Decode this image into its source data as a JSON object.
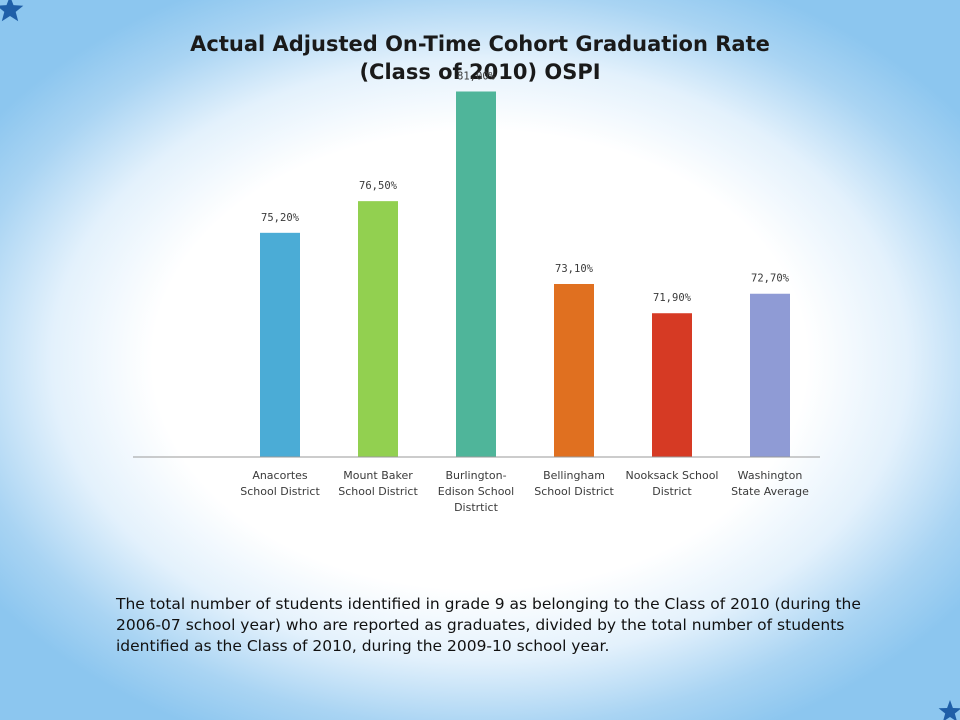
{
  "chart_data": {
    "type": "bar",
    "title_line1": "Actual Adjusted On-Time Cohort Graduation Rate",
    "title_line2": "(Class of 2010)  OSPI",
    "categories": [
      [
        "Anacortes",
        "School District"
      ],
      [
        "Mount Baker",
        "School District"
      ],
      [
        "Burlington-",
        "Edison School",
        "Distrtict"
      ],
      [
        "Bellingham",
        "School District"
      ],
      [
        "Nooksack School",
        "District"
      ],
      [
        "Washington",
        "State Average"
      ]
    ],
    "values": [
      75.2,
      76.5,
      81.0,
      73.1,
      71.9,
      72.7
    ],
    "value_labels": [
      "75,20%",
      "76,50%",
      "81,00%",
      "73,10%",
      "71,90%",
      "72,70%"
    ],
    "colors": [
      "#4bacd6",
      "#92d050",
      "#4fb59a",
      "#e07020",
      "#d63a24",
      "#8f9bd5"
    ],
    "ylim": [
      66,
      81.8
    ],
    "grid": false,
    "legend": "none"
  },
  "caption": "The total number of students identified in grade 9 as belonging to the Class of 2010 (during the 2006-07 school year) who are reported as graduates, divided by the total number of students identified as the Class of 2010, during the 2009-10 school year."
}
